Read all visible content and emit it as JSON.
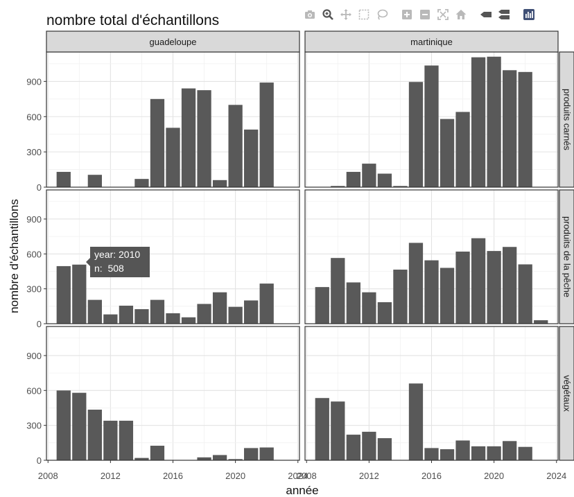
{
  "title": "nombre total d'échantillons",
  "modebar": {
    "icons": [
      "camera-icon",
      "zoom-icon",
      "pan-icon",
      "box-select-icon",
      "lasso-select-icon",
      "zoom-in-icon",
      "zoom-out-icon",
      "autoscale-icon",
      "reset-axes-icon",
      "spike-lines-icon",
      "compare-hover-icon",
      "plotly-logo-icon"
    ]
  },
  "tooltip": {
    "line1": "year: 2010",
    "line2": "n:  508"
  },
  "chart_data": {
    "type": "bar",
    "xlabel": "année",
    "ylabel": "nombre d'échantillons",
    "x_ticks": [
      2008,
      2012,
      2016,
      2020,
      2024
    ],
    "y_ticks": [
      0,
      300,
      600,
      900
    ],
    "ylim": [
      0,
      1150
    ],
    "xlim": [
      2007.9,
      2024.1
    ],
    "grid": true,
    "columns": [
      "guadeloupe",
      "martinique"
    ],
    "rows": [
      "produits carnés",
      "produits de la pêche",
      "végétaux"
    ],
    "panels": [
      {
        "column": "guadeloupe",
        "row": "produits carnés",
        "x": [
          2009,
          2011,
          2014,
          2015,
          2016,
          2017,
          2018,
          2019,
          2020,
          2021,
          2022
        ],
        "values": [
          130,
          105,
          70,
          750,
          505,
          840,
          825,
          60,
          700,
          490,
          890
        ]
      },
      {
        "column": "martinique",
        "row": "produits carnés",
        "x": [
          2010,
          2011,
          2012,
          2013,
          2014,
          2015,
          2016,
          2017,
          2018,
          2019,
          2020,
          2021,
          2022
        ],
        "values": [
          10,
          130,
          200,
          115,
          10,
          895,
          1035,
          580,
          640,
          1105,
          1110,
          995,
          980
        ]
      },
      {
        "column": "guadeloupe",
        "row": "produits de la pêche",
        "x": [
          2009,
          2010,
          2011,
          2012,
          2013,
          2014,
          2015,
          2016,
          2017,
          2018,
          2019,
          2020,
          2021,
          2022
        ],
        "values": [
          495,
          508,
          205,
          80,
          155,
          125,
          205,
          90,
          55,
          170,
          270,
          145,
          200,
          345
        ]
      },
      {
        "column": "martinique",
        "row": "produits de la pêche",
        "x": [
          2009,
          2010,
          2011,
          2012,
          2013,
          2014,
          2015,
          2016,
          2017,
          2018,
          2019,
          2020,
          2021,
          2022,
          2023
        ],
        "values": [
          315,
          565,
          355,
          270,
          185,
          465,
          695,
          545,
          480,
          620,
          735,
          625,
          660,
          510,
          30
        ]
      },
      {
        "column": "guadeloupe",
        "row": "végétaux",
        "x": [
          2009,
          2010,
          2011,
          2012,
          2013,
          2014,
          2015,
          2018,
          2019,
          2020,
          2021,
          2022
        ],
        "values": [
          600,
          580,
          435,
          340,
          340,
          20,
          125,
          25,
          45,
          10,
          105,
          110
        ]
      },
      {
        "column": "martinique",
        "row": "végétaux",
        "x": [
          2009,
          2010,
          2011,
          2012,
          2013,
          2015,
          2016,
          2017,
          2018,
          2019,
          2020,
          2021,
          2022
        ],
        "values": [
          535,
          505,
          220,
          245,
          190,
          660,
          105,
          95,
          170,
          120,
          120,
          165,
          115
        ]
      }
    ]
  }
}
